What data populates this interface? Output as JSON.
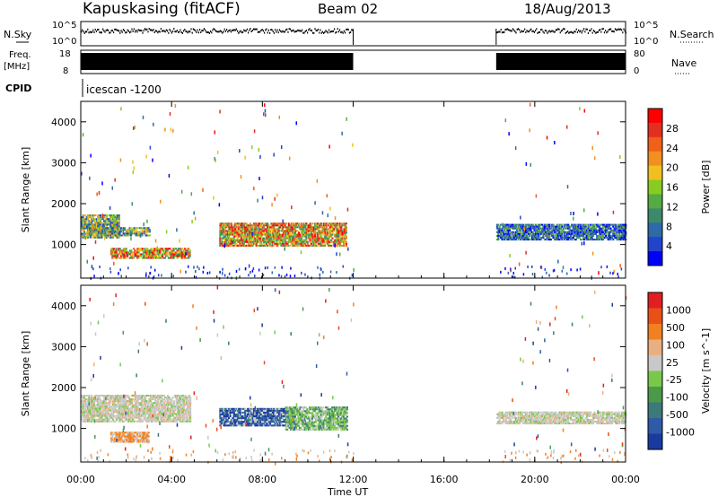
{
  "header": {
    "station": "Kapuskasing (fitACF)",
    "beam": "Beam 02",
    "date": "18/Aug/2013"
  },
  "strips": {
    "nsky_label": "N.Sky",
    "nsky_ticks": [
      "10^5",
      "10^0"
    ],
    "nsearch_label": "N.Search",
    "nsearch_ticks": [
      "10^5",
      "10^0"
    ],
    "freq_label": "Freq.",
    "freq_unit": "[MHz]",
    "freq_ticks": [
      "18",
      "8"
    ],
    "nave_label": "Nave",
    "nave_ticks": [
      "80",
      "0"
    ],
    "cpid_label": "CPID",
    "cpid_value": "icescan -1200"
  },
  "chart_data": [
    {
      "type": "heatmap",
      "panel": "power",
      "ylabel": "Slant Range [km]",
      "colorbar_label": "Power [dB]",
      "colorbar_ticks": [
        "28",
        "24",
        "20",
        "16",
        "12",
        "8",
        "4"
      ],
      "colors": [
        "#0000ff",
        "#2244cc",
        "#2e6aa8",
        "#3c8a6a",
        "#55aa44",
        "#88cc22",
        "#f0c020",
        "#f09020",
        "#f06018",
        "#e03020",
        "#ff0000"
      ],
      "yticks": [
        "4000",
        "3000",
        "2000",
        "1000"
      ],
      "ylim": [
        180,
        4500
      ],
      "xlim_hours": [
        0,
        24
      ],
      "data_gap_hours": [
        12.0,
        18.3
      ],
      "blobs": [
        {
          "t0": 0.0,
          "t1": 1.7,
          "r0": 1150,
          "r1": 1700,
          "level": "mid"
        },
        {
          "t0": 1.3,
          "t1": 4.8,
          "r0": 650,
          "r1": 900,
          "level": "strong"
        },
        {
          "t0": 0.3,
          "t1": 3.0,
          "r0": 1200,
          "r1": 1400,
          "level": "mid"
        },
        {
          "t0": 6.1,
          "t1": 11.7,
          "r0": 950,
          "r1": 1500,
          "level": "strong"
        },
        {
          "t0": 18.3,
          "t1": 24.0,
          "r0": 1100,
          "r1": 1500,
          "level": "weak"
        }
      ]
    },
    {
      "type": "heatmap",
      "panel": "velocity",
      "ylabel": "Slant Range [km]",
      "colorbar_label": "Velocity [m s^-1]",
      "colorbar_ticks": [
        "1000",
        "500",
        "100",
        "25",
        "-25",
        "-100",
        "-500",
        "-1000"
      ],
      "colors": [
        "#1a3aa0",
        "#2e5aa8",
        "#3c7a7a",
        "#4a9a4a",
        "#7ac84a",
        "#c8c8c8",
        "#e8b080",
        "#f08020",
        "#e85018",
        "#e02020"
      ],
      "yticks": [
        "4000",
        "3000",
        "2000",
        "1000"
      ],
      "ylim": [
        180,
        4500
      ],
      "xticks": [
        "00:00",
        "04:00",
        "08:00",
        "12:00",
        "16:00",
        "20:00",
        "00:00"
      ],
      "xlabel": "Time UT",
      "xlim_hours": [
        0,
        24
      ],
      "data_gap_hours": [
        12.0,
        18.3
      ],
      "blobs": [
        {
          "t0": 0.0,
          "t1": 4.8,
          "r0": 1150,
          "r1": 1800,
          "level": "grey"
        },
        {
          "t0": 1.3,
          "t1": 3.0,
          "r0": 650,
          "r1": 900,
          "level": "orange"
        },
        {
          "t0": 6.1,
          "t1": 9.4,
          "r0": 1050,
          "r1": 1500,
          "level": "blue"
        },
        {
          "t0": 9.0,
          "t1": 11.7,
          "r0": 950,
          "r1": 1500,
          "level": "green"
        },
        {
          "t0": 18.3,
          "t1": 24.0,
          "r0": 1100,
          "r1": 1400,
          "level": "grey"
        }
      ]
    }
  ]
}
